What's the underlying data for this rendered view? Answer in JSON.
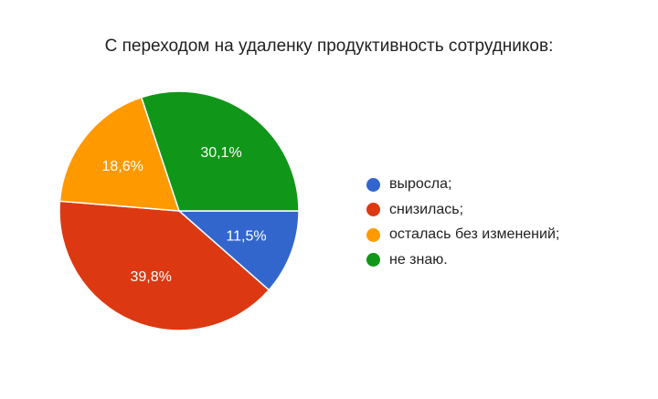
{
  "chart_data": {
    "type": "pie",
    "title": "С переходом на удаленку продуктивность сотрудников:",
    "slices": [
      {
        "label": "выросла;",
        "value": 11.5,
        "value_label": "11,5%",
        "color": "#3366cc"
      },
      {
        "label": "снизилась;",
        "value": 39.8,
        "value_label": "39,8%",
        "color": "#dc3912"
      },
      {
        "label": "осталась без изменений;",
        "value": 18.6,
        "value_label": "18,6%",
        "color": "#ff9900"
      },
      {
        "label": "не знаю.",
        "value": 30.1,
        "value_label": "30,1%",
        "color": "#109618"
      }
    ],
    "legend_position": "right"
  }
}
